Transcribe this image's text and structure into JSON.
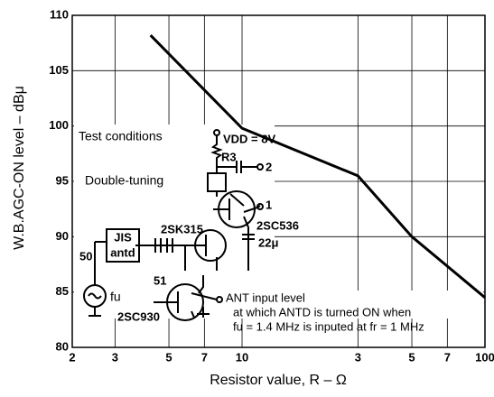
{
  "chart_data": {
    "type": "line",
    "x_label": "Resistor value, R – Ω",
    "y_label": "W.B.AGC-ON level – dBμ",
    "x": [
      4.2,
      10,
      30,
      50,
      100
    ],
    "values": [
      108.2,
      99.8,
      95.5,
      90,
      84.5
    ],
    "color": "#000000",
    "xlim": [
      2,
      100
    ],
    "ylim": [
      80,
      110
    ],
    "xscale": "log",
    "grid": true,
    "xticks": [
      2,
      3,
      5,
      7,
      10,
      {
        "value": 30,
        "label": "3"
      },
      {
        "value": 50,
        "label": "5"
      },
      {
        "value": 70,
        "label": "7"
      },
      100
    ],
    "yticks": [
      80,
      85,
      90,
      95,
      100,
      105,
      110
    ],
    "schematic": {
      "conditions": "Test conditions",
      "vdd": "VDD = 8V",
      "r3": "R3",
      "out2": "2",
      "tuning": "Double-tuning",
      "out1": "1",
      "q1": "2SK315",
      "q2": "2SC536",
      "cap": "22μ",
      "jis": "JIS",
      "antd": "antd",
      "r50": "50",
      "r51": "51",
      "fu": "fu",
      "q3": "2SC930"
    },
    "annotation": [
      "ANT input level",
      "at which ANTD is turned ON when",
      "fu = 1.4 MHz is inputed at fr = 1 MHz"
    ]
  }
}
